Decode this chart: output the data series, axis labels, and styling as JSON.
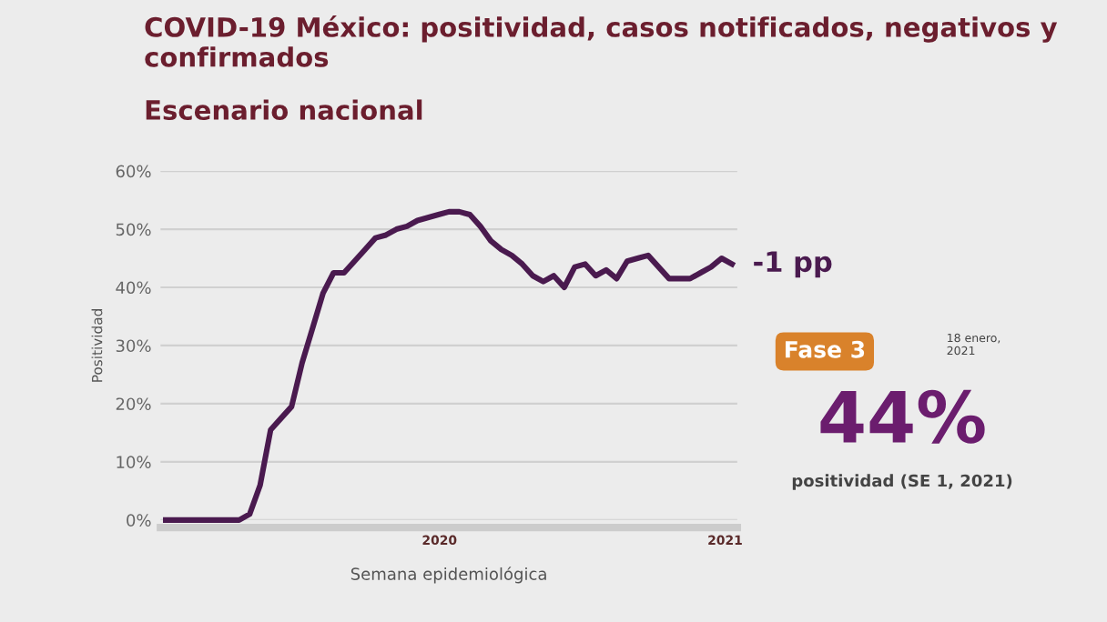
{
  "chart_data": {
    "type": "line",
    "title": "COVID-19 México: positividad, casos notificados, negativos y confirmados",
    "subtitle": "Escenario nacional",
    "xlabel": "Semana epidemiológica",
    "ylabel": "Positividad",
    "categories": [
      null,
      null,
      null,
      null,
      null,
      null,
      null,
      null,
      null,
      null,
      null,
      null,
      null,
      null,
      null,
      null,
      null,
      null,
      null,
      null,
      null,
      null,
      null,
      null,
      null,
      null,
      null,
      null,
      null,
      null,
      null,
      null,
      null,
      null,
      null,
      null,
      null,
      null,
      null,
      null,
      null,
      null,
      null,
      null,
      null,
      null,
      null,
      null,
      null,
      null,
      null,
      null,
      null,
      null,
      null
    ],
    "series": [
      {
        "color": "#4a1a4f",
        "values": [
          0,
          0,
          0,
          0,
          0,
          0,
          0,
          0,
          1,
          6,
          15.5,
          17.5,
          19.5,
          27,
          33,
          39,
          42.5,
          42.5,
          44.5,
          46.5,
          48.5,
          49,
          50,
          50.5,
          51.5,
          52,
          52.5,
          53,
          53,
          52.5,
          50.5,
          48,
          46.5,
          45.5,
          44,
          42,
          41,
          42,
          40,
          43.5,
          44,
          42,
          43,
          41.5,
          44.5,
          45,
          45.5,
          43.5,
          41.5,
          41.5,
          41.5,
          42.5,
          43.5,
          45,
          44
        ]
      }
    ],
    "ylim": [
      0,
      60
    ],
    "yticks": [
      {
        "value": 0,
        "label": "0%"
      },
      {
        "value": 10,
        "label": "10%"
      },
      {
        "value": 20,
        "label": "20%"
      },
      {
        "value": 30,
        "label": "30%"
      },
      {
        "value": 40,
        "label": "40%"
      },
      {
        "value": 50,
        "label": "50%"
      },
      {
        "value": 60,
        "label": "60%"
      }
    ],
    "grid": "y",
    "marker": "none",
    "line_style": "solid",
    "annotations": [
      "-1 pp",
      "Fase 3",
      "18 enero, 2021",
      "44%",
      "positividad (SE 1, 2021)",
      "2020",
      "2021"
    ]
  }
}
